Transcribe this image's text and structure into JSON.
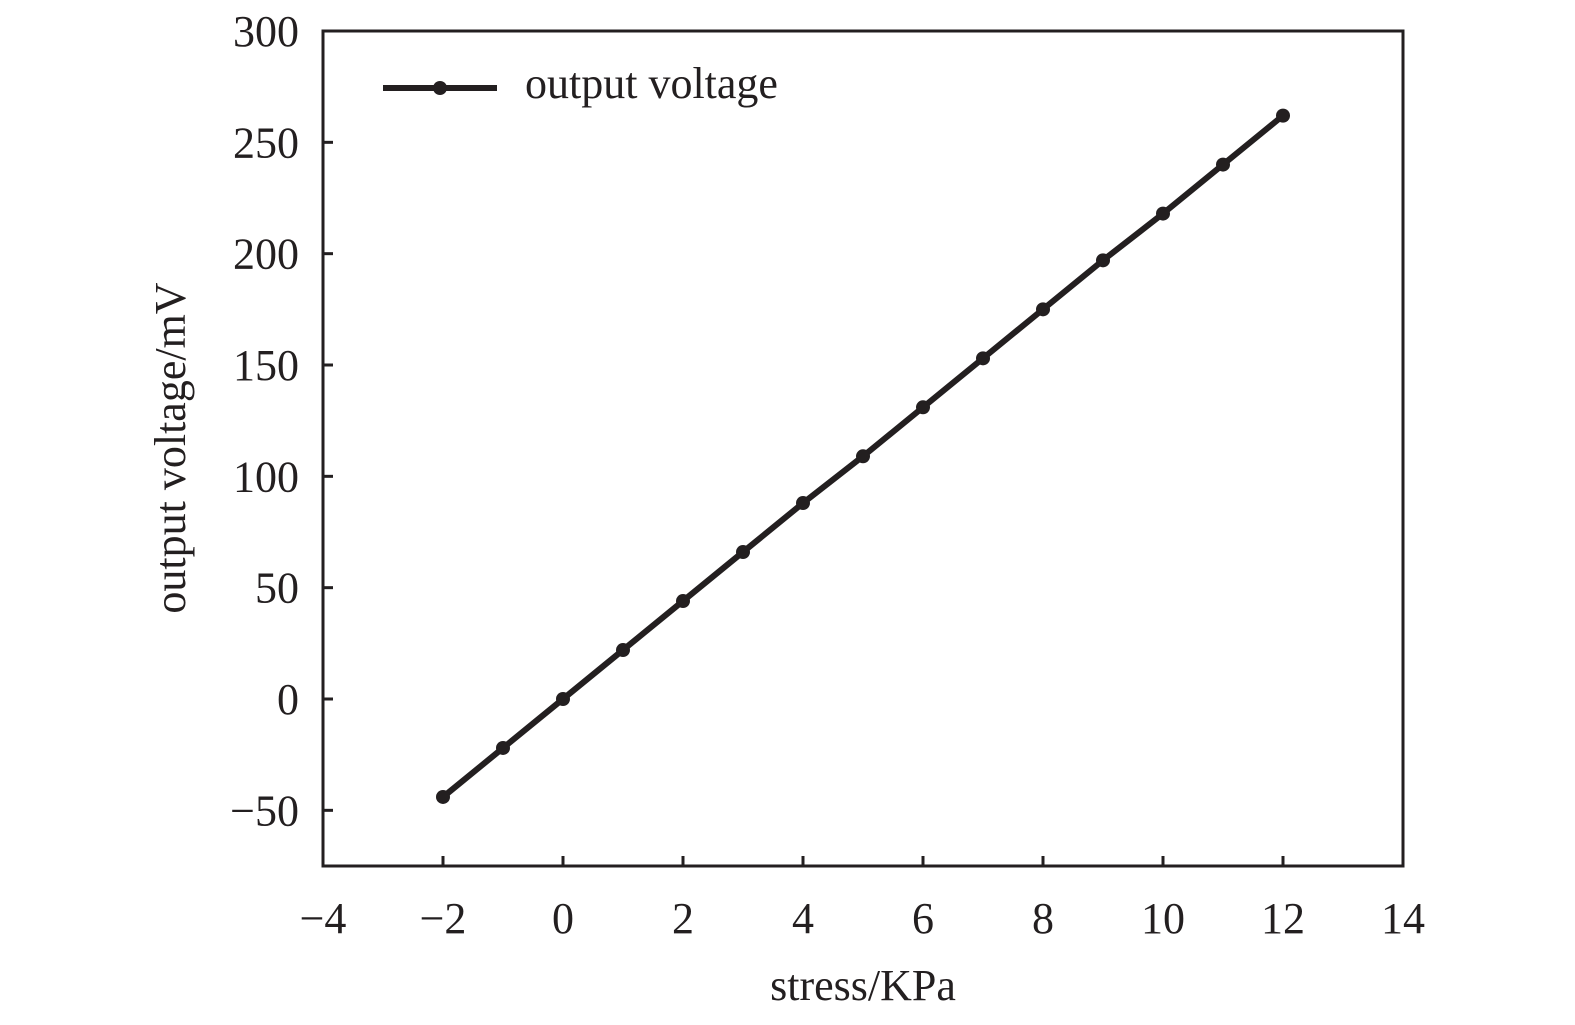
{
  "chart_data": {
    "type": "line",
    "title": "",
    "xlabel": "stress/KPa",
    "ylabel": "output voltage/mV",
    "xlim": [
      -4,
      14
    ],
    "ylim": [
      -75,
      300
    ],
    "x_ticks": [
      -4,
      -2,
      0,
      2,
      4,
      6,
      8,
      10,
      12,
      14
    ],
    "y_ticks": [
      -50,
      0,
      50,
      100,
      150,
      200,
      250,
      300
    ],
    "x_tick_labels": [
      "−4",
      "−2",
      "0",
      "2",
      "4",
      "6",
      "8",
      "10",
      "12",
      "14"
    ],
    "y_tick_labels": [
      "−50",
      "0",
      "50",
      "100",
      "150",
      "200",
      "250",
      "300"
    ],
    "grid": false,
    "legend_position": "top-left",
    "series": [
      {
        "name": "output voltage",
        "color": "#231f20",
        "marker": "circle",
        "x": [
          -2,
          -1,
          0,
          1,
          2,
          3,
          4,
          5,
          6,
          7,
          8,
          9,
          10,
          11,
          12
        ],
        "y": [
          -44,
          -22,
          0,
          22,
          44,
          66,
          88,
          109,
          131,
          153,
          175,
          197,
          218,
          240,
          262
        ]
      }
    ]
  }
}
